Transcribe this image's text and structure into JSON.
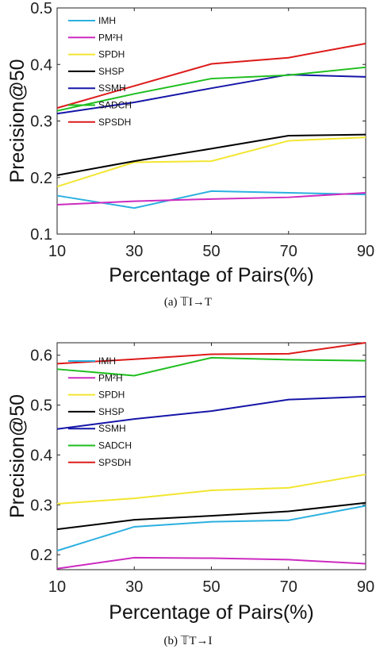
{
  "chart_data": [
    {
      "type": "line",
      "caption": "(a) 𝕋I→T",
      "xlabel": "Percentage of Pairs(%)",
      "ylabel": "Precision@50",
      "x": [
        10,
        30,
        50,
        70,
        90
      ],
      "xticks": [
        "10",
        "30",
        "50",
        "70",
        "90"
      ],
      "xlim": [
        10,
        90
      ],
      "ylim": [
        0.1,
        0.5
      ],
      "yticks": [
        "0.1",
        "0.2",
        "0.3",
        "0.4",
        "0.5"
      ],
      "ytick_values": [
        0.1,
        0.2,
        0.3,
        0.4,
        0.5
      ],
      "grid": false,
      "legend_position": "top-left",
      "series": [
        {
          "name": "IMH",
          "color": "#2bb0e0",
          "values": [
            0.168,
            0.146,
            0.176,
            0.173,
            0.17
          ]
        },
        {
          "name": "PM²H",
          "color": "#cc2bc0",
          "values": [
            0.152,
            0.158,
            0.162,
            0.165,
            0.173
          ]
        },
        {
          "name": "SPDH",
          "color": "#f2e630",
          "values": [
            0.184,
            0.227,
            0.229,
            0.265,
            0.271
          ]
        },
        {
          "name": "SHSP",
          "color": "#000000",
          "values": [
            0.204,
            0.229,
            0.251,
            0.274,
            0.276
          ]
        },
        {
          "name": "SSMH",
          "color": "#1515a8",
          "values": [
            0.313,
            0.333,
            0.358,
            0.382,
            0.378
          ]
        },
        {
          "name": "SADCH",
          "color": "#1ebe1e",
          "values": [
            0.318,
            0.348,
            0.375,
            0.381,
            0.395
          ]
        },
        {
          "name": "SPSDH",
          "color": "#dd1a1a",
          "values": [
            0.323,
            0.362,
            0.401,
            0.412,
            0.437
          ]
        }
      ]
    },
    {
      "type": "line",
      "caption": "(b) 𝕋T→I",
      "xlabel": "Percentage of Pairs(%)",
      "ylabel": "Precision@50",
      "x": [
        10,
        30,
        50,
        70,
        90
      ],
      "xticks": [
        "10",
        "30",
        "50",
        "70",
        "90"
      ],
      "xlim": [
        10,
        90
      ],
      "ylim": [
        0.17,
        0.625
      ],
      "yticks": [
        "0.2",
        "0.3",
        "0.4",
        "0.5",
        "0.6"
      ],
      "ytick_values": [
        0.2,
        0.3,
        0.4,
        0.5,
        0.6
      ],
      "grid": false,
      "legend_position": "top-left",
      "series": [
        {
          "name": "IMH",
          "color": "#2bb0e0",
          "values": [
            0.208,
            0.256,
            0.266,
            0.269,
            0.298
          ]
        },
        {
          "name": "PM²H",
          "color": "#cc2bc0",
          "values": [
            0.172,
            0.194,
            0.193,
            0.19,
            0.182
          ]
        },
        {
          "name": "SPDH",
          "color": "#f2e630",
          "values": [
            0.302,
            0.313,
            0.329,
            0.334,
            0.361
          ]
        },
        {
          "name": "SHSP",
          "color": "#000000",
          "values": [
            0.251,
            0.27,
            0.278,
            0.287,
            0.304
          ]
        },
        {
          "name": "SSMH",
          "color": "#1515a8",
          "values": [
            0.452,
            0.472,
            0.488,
            0.511,
            0.517
          ]
        },
        {
          "name": "SADCH",
          "color": "#1ebe1e",
          "values": [
            0.572,
            0.559,
            0.595,
            0.591,
            0.589
          ]
        },
        {
          "name": "SPSDH",
          "color": "#dd1a1a",
          "values": [
            0.583,
            0.592,
            0.602,
            0.603,
            0.625
          ]
        }
      ]
    }
  ]
}
